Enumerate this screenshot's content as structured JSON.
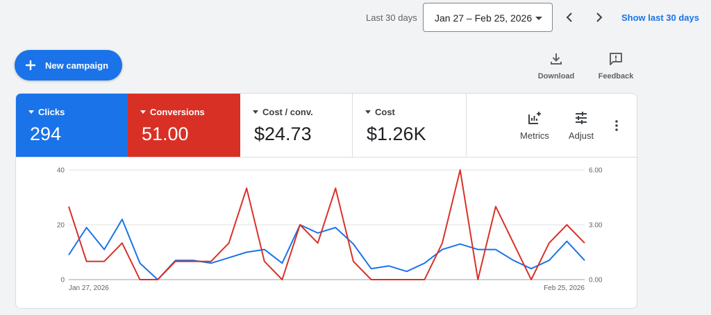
{
  "date_range": {
    "preset_label": "Last 30 days",
    "selected_value": "Jan 27 – Feb 25, 2026",
    "show_last_label": "Show last 30 days"
  },
  "actions": {
    "new_campaign_label": "New campaign",
    "download_label": "Download",
    "feedback_label": "Feedback"
  },
  "metrics": [
    {
      "name": "Clicks",
      "value": "294",
      "color": "#1a73e8"
    },
    {
      "name": "Conversions",
      "value": "51.00",
      "color": "#d93025"
    },
    {
      "name": "Cost / conv.",
      "value": "$24.73"
    },
    {
      "name": "Cost",
      "value": "$1.26K"
    }
  ],
  "chart_tools": {
    "metrics_label": "Metrics",
    "adjust_label": "Adjust"
  },
  "chart_data": {
    "type": "line",
    "x_start_label": "Jan 27, 2026",
    "x_end_label": "Feb 25, 2026",
    "left_axis": {
      "ticks": [
        "0",
        "20",
        "40"
      ],
      "ylim": [
        0,
        40
      ]
    },
    "right_axis": {
      "ticks": [
        "0.00",
        "3.00",
        "6.00"
      ],
      "ylim": [
        0,
        6
      ]
    },
    "grid": true,
    "series": [
      {
        "name": "Clicks",
        "axis": "left",
        "color": "#1a73e8",
        "values": [
          9,
          19,
          11,
          22,
          6,
          0,
          7,
          7,
          6,
          8,
          10,
          11,
          6,
          20,
          17,
          19,
          13,
          4,
          5,
          3,
          6,
          11,
          13,
          11,
          11,
          7,
          4,
          7,
          14,
          7
        ]
      },
      {
        "name": "Conversions",
        "axis": "right",
        "color": "#d93025",
        "values": [
          4,
          1,
          1,
          2,
          0,
          0,
          1,
          1,
          1,
          2,
          5,
          1,
          0,
          3,
          2,
          5,
          1,
          0,
          0,
          0,
          0,
          2,
          6,
          0,
          4,
          2,
          0,
          2,
          3,
          2
        ]
      }
    ]
  }
}
